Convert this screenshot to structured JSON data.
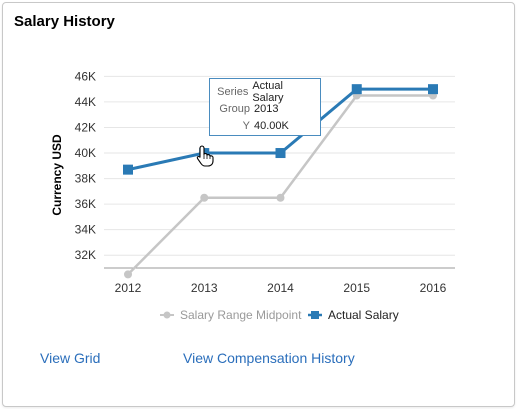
{
  "panel": {
    "title": "Salary History"
  },
  "chart_data": {
    "type": "line",
    "ylabel": "Currency USD",
    "xlabel": "",
    "categories": [
      "2012",
      "2013",
      "2014",
      "2015",
      "2016"
    ],
    "y_ticks": [
      "32K",
      "34K",
      "36K",
      "38K",
      "40K",
      "42K",
      "44K",
      "46K"
    ],
    "ylim": [
      31000,
      46500
    ],
    "grid": true,
    "legend_position": "bottom",
    "series": [
      {
        "name": "Salary Range Midpoint",
        "values": [
          30500,
          36500,
          36500,
          44500,
          44500
        ],
        "color": "#c6c6c6",
        "marker": "circle"
      },
      {
        "name": "Actual Salary",
        "values": [
          38700,
          40000,
          40000,
          45000,
          45000
        ],
        "color": "#2a7ab5",
        "marker": "square"
      }
    ]
  },
  "tooltip": {
    "series_key": "Series",
    "series_value": "Actual Salary",
    "group_key": "Group",
    "group_value": "2013",
    "y_key": "Y",
    "y_value": "40.00K"
  },
  "links": {
    "view_grid": "View Grid",
    "view_comp_history": "View Compensation History"
  },
  "colors": {
    "link": "#2a6ebb",
    "tooltip_border": "#4a8cbf"
  }
}
